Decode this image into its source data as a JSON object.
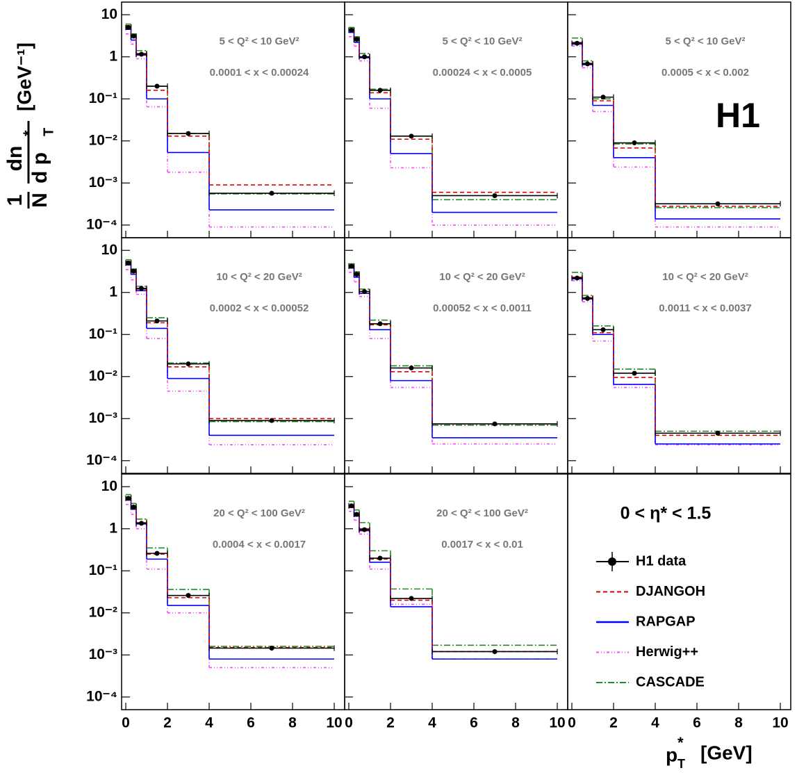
{
  "chart_data": {
    "type": "step",
    "log_y": true,
    "xlim": [
      -0.2,
      10.5
    ],
    "ylim": [
      5e-05,
      20
    ],
    "xticks": [
      0,
      2,
      4,
      6,
      8,
      10
    ],
    "yticks": [
      {
        "value": 0.0001,
        "label": "10⁻⁴"
      },
      {
        "value": 0.001,
        "label": "10⁻³"
      },
      {
        "value": 0.01,
        "label": "10⁻²"
      },
      {
        "value": 0.1,
        "label": "10⁻¹"
      },
      1,
      10
    ],
    "x_label": {
      "main": "p",
      "sub": "T",
      "sup": "*",
      "unit": "[GeV]"
    },
    "y_label": {
      "pre_num": "1",
      "pre_den": "N",
      "num": "dn",
      "den": "d p",
      "sub": "T",
      "sup": "*",
      "unit": "[GeV⁻¹]"
    },
    "brand": "H1",
    "legend": {
      "title": "0 < η* < 1.5",
      "position": "bottom-right-panel"
    },
    "series": [
      {
        "name": "H1 data",
        "color": "#000000",
        "style": "points"
      },
      {
        "name": "DJANGOH",
        "color": "#e00000",
        "style": "dashed"
      },
      {
        "name": "RAPGAP",
        "color": "#0000ff",
        "style": "solid"
      },
      {
        "name": "Herwig++",
        "color": "#ff44ff",
        "style": "dashdotdot"
      },
      {
        "name": "CASCADE",
        "color": "#228b22",
        "style": "dashdot"
      }
    ],
    "panels": [
      {
        "annotations": [
          "5  < Q² < 10 GeV²",
          "0.0001 < x  < 0.00024"
        ],
        "bins": [
          0,
          0.25,
          0.5,
          1,
          2,
          4,
          10
        ],
        "series": [
          {
            "values": [
              5.0,
              3.1,
              1.15,
              0.2,
              0.015,
              0.00057
            ]
          },
          {
            "values": [
              5.5,
              3.0,
              1.2,
              0.16,
              0.013,
              0.0009
            ]
          },
          {
            "values": [
              4.5,
              2.5,
              1.1,
              0.1,
              0.0053,
              0.00023
            ]
          },
          {
            "values": [
              3.5,
              2.0,
              0.9,
              0.065,
              0.0018,
              9e-05
            ]
          },
          {
            "values": [
              6.0,
              3.5,
              1.4,
              0.2,
              0.015,
              0.00055
            ]
          }
        ]
      },
      {
        "annotations": [
          "5  < Q² < 10 GeV²",
          "0.00024 < x  < 0.0005"
        ],
        "bins": [
          0,
          0.25,
          0.5,
          1,
          2,
          4,
          10
        ],
        "series": [
          {
            "values": [
              4.3,
              2.6,
              1.0,
              0.16,
              0.013,
              0.0005
            ]
          },
          {
            "values": [
              4.5,
              2.8,
              1.0,
              0.14,
              0.011,
              0.0006
            ]
          },
          {
            "values": [
              3.8,
              2.2,
              0.95,
              0.1,
              0.005,
              0.0002
            ]
          },
          {
            "values": [
              3.0,
              1.8,
              0.8,
              0.06,
              0.0023,
              0.0001
            ]
          },
          {
            "values": [
              5.0,
              3.0,
              1.2,
              0.17,
              0.013,
              0.0004
            ]
          }
        ]
      },
      {
        "annotations": [
          "5  < Q² < 10 GeV²",
          "0.0005 < x  < 0.002"
        ],
        "bins": [
          0,
          0.5,
          1,
          2,
          4,
          10
        ],
        "series": [
          {
            "values": [
              2.1,
              0.68,
              0.11,
              0.009,
              0.00032
            ]
          },
          {
            "values": [
              2.2,
              0.7,
              0.09,
              0.0068,
              0.00028
            ]
          },
          {
            "values": [
              2.0,
              0.65,
              0.07,
              0.004,
              0.00014
            ]
          },
          {
            "values": [
              1.8,
              0.55,
              0.05,
              0.0024,
              9e-05
            ]
          },
          {
            "values": [
              2.8,
              0.8,
              0.1,
              0.0085,
              0.00026
            ]
          }
        ]
      },
      {
        "annotations": [
          "10 < Q² < 20 GeV²",
          "0.0002 < x  < 0.00052"
        ],
        "bins": [
          0,
          0.25,
          0.5,
          1,
          2,
          4,
          10
        ],
        "series": [
          {
            "values": [
              5.0,
              3.2,
              1.25,
              0.21,
              0.02,
              0.0009
            ]
          },
          {
            "values": [
              5.5,
              3.2,
              1.2,
              0.19,
              0.017,
              0.001
            ]
          },
          {
            "values": [
              4.5,
              2.7,
              1.1,
              0.14,
              0.009,
              0.0004
            ]
          },
          {
            "values": [
              3.5,
              2.0,
              0.9,
              0.08,
              0.0045,
              0.00024
            ]
          },
          {
            "values": [
              6.0,
              3.6,
              1.4,
              0.25,
              0.021,
              0.00085
            ]
          }
        ]
      },
      {
        "annotations": [
          "10 < Q² < 20 GeV²",
          "0.00052 < x  < 0.0011"
        ],
        "bins": [
          0,
          0.25,
          0.5,
          1,
          2,
          4,
          10
        ],
        "series": [
          {
            "values": [
              4.2,
              2.7,
              1.05,
              0.18,
              0.016,
              0.00075
            ]
          },
          {
            "values": [
              4.4,
              2.8,
              1.05,
              0.17,
              0.013,
              0.00075
            ]
          },
          {
            "values": [
              3.8,
              2.3,
              0.95,
              0.13,
              0.008,
              0.00035
            ]
          },
          {
            "values": [
              3.0,
              1.8,
              0.8,
              0.08,
              0.0055,
              0.00025
            ]
          },
          {
            "values": [
              4.8,
              3.1,
              1.2,
              0.22,
              0.018,
              0.0007
            ]
          }
        ]
      },
      {
        "annotations": [
          "10 < Q² < 20 GeV²",
          "0.0011 < x  < 0.0037"
        ],
        "bins": [
          0,
          0.5,
          1,
          2,
          4,
          10
        ],
        "series": [
          {
            "values": [
              2.2,
              0.72,
              0.13,
              0.012,
              0.00045
            ]
          },
          {
            "values": [
              2.3,
              0.75,
              0.11,
              0.0095,
              0.0004
            ]
          },
          {
            "values": [
              2.1,
              0.7,
              0.1,
              0.0065,
              0.00025
            ]
          },
          {
            "values": [
              1.9,
              0.6,
              0.07,
              0.0055,
              0.00024
            ]
          },
          {
            "values": [
              3.0,
              0.85,
              0.16,
              0.015,
              0.0005
            ]
          }
        ]
      },
      {
        "annotations": [
          "20 < Q²  < 100 GeV²",
          "0.0004 < x  < 0.0017"
        ],
        "bins": [
          0,
          0.25,
          0.5,
          1,
          2,
          4,
          10
        ],
        "series": [
          {
            "values": [
              5.3,
              3.3,
              1.35,
              0.26,
              0.026,
              0.00145
            ]
          },
          {
            "values": [
              5.5,
              3.3,
              1.4,
              0.25,
              0.023,
              0.0015
            ]
          },
          {
            "values": [
              4.8,
              2.9,
              1.3,
              0.19,
              0.015,
              0.0008
            ]
          },
          {
            "values": [
              3.8,
              2.2,
              1.0,
              0.11,
              0.01,
              0.0005
            ]
          },
          {
            "values": [
              6.5,
              4.0,
              1.7,
              0.35,
              0.036,
              0.0016
            ]
          }
        ]
      },
      {
        "annotations": [
          "20 < Q²  < 100 GeV²",
          "0.0017 < x  < 0.01"
        ],
        "bins": [
          0,
          0.25,
          0.5,
          1,
          2,
          4,
          10
        ],
        "series": [
          {
            "values": [
              3.5,
              2.2,
              0.95,
              0.2,
              0.022,
              0.0012
            ]
          },
          {
            "values": [
              3.6,
              2.3,
              1.0,
              0.19,
              0.02,
              0.0012
            ]
          },
          {
            "values": [
              3.2,
              2.0,
              0.9,
              0.16,
              0.014,
              0.0008
            ]
          },
          {
            "values": [
              2.6,
              1.6,
              0.75,
              0.11,
              0.016,
              0.0008
            ]
          },
          {
            "values": [
              4.5,
              2.8,
              1.4,
              0.3,
              0.037,
              0.0017
            ]
          }
        ]
      }
    ]
  }
}
